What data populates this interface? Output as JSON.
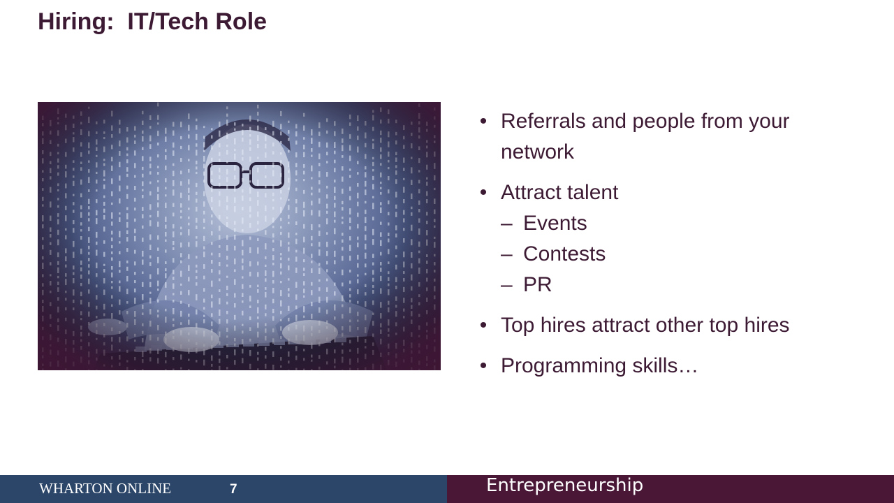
{
  "slide": {
    "title": "Hiring:  IT/Tech Role"
  },
  "photo": {
    "description_icon": "programmer-at-keyboard-image",
    "colors": {
      "highlight": "#b7c2d9",
      "mid": "#4b5a88",
      "vignette": "#4a1e3d"
    }
  },
  "bullets": [
    {
      "text": "Referrals and people from your network"
    },
    {
      "text": "Attract talent",
      "subs": [
        "Events",
        "Contests",
        "PR"
      ]
    },
    {
      "text": "Top hires attract other top hires"
    },
    {
      "text": "Programming skills…"
    }
  ],
  "bullet_symbols": {
    "bullet": "•",
    "sub": "–"
  },
  "footer": {
    "brand": "WHARTON ONLINE",
    "page_number": "7",
    "course": "Entrepreneurship",
    "colors": {
      "left": "#2c4669",
      "right": "#4a1737"
    }
  },
  "colors": {
    "title": "#3d1a33",
    "text": "#3d1a33"
  }
}
